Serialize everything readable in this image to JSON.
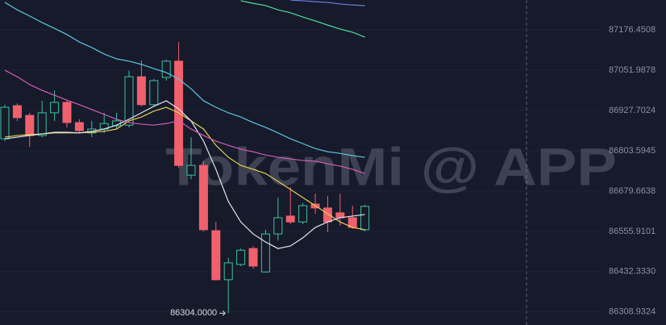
{
  "chart_data": {
    "type": "candlestick",
    "watermark": "TokenMi @ APP",
    "open": [
      86841,
      86943,
      86913,
      86851,
      86921,
      86953,
      86891,
      86859,
      86871,
      86881,
      86883,
      87032,
      86946,
      87030,
      87080,
      86729,
      86759,
      86558,
      86407,
      86454,
      86503,
      86431,
      86548,
      86603,
      86585,
      86640,
      86628,
      86613,
      86598,
      86561
    ],
    "high": [
      86946,
      86950,
      86921,
      86958,
      86990,
      86958,
      86901,
      86896,
      86921,
      86921,
      87050,
      87082,
      87025,
      87085,
      87139,
      86846,
      86772,
      86585,
      86474,
      86503,
      86511,
      86561,
      86660,
      86692,
      86643,
      86672,
      86665,
      86672,
      86635,
      86638
    ],
    "low": [
      86834,
      86896,
      86816,
      86846,
      86896,
      86876,
      86859,
      86846,
      86859,
      86871,
      86876,
      86941,
      86941,
      87020,
      86752,
      86717,
      86556,
      86404,
      86304,
      86449,
      86441,
      86429,
      86528,
      86578,
      86578,
      86610,
      86553,
      86573,
      86563,
      86556
    ],
    "close": [
      86938,
      86906,
      86851,
      86921,
      86953,
      86891,
      86866,
      86871,
      86888,
      86896,
      87032,
      86946,
      87020,
      87080,
      86759,
      86759,
      86561,
      86407,
      86459,
      86498,
      86449,
      86548,
      86598,
      86585,
      86635,
      86628,
      86585,
      86598,
      86568,
      86633
    ],
    "up_color": "#3cc29e",
    "down_color": "#f0616d",
    "lines": [
      {
        "color": "#e3cf57",
        "values": [
          86846,
          86851,
          86854,
          86856,
          86859,
          86859,
          86859,
          86861,
          86864,
          86871,
          86896,
          86908,
          86926,
          86938,
          86921,
          86896,
          86871,
          86821,
          86784,
          86759,
          86747,
          86734,
          86710,
          86685,
          86660,
          86635,
          86610,
          86585,
          86568,
          86561
        ]
      },
      {
        "color": "#e4e6ee",
        "values": [
          86841,
          86846,
          86851,
          86856,
          86861,
          86861,
          86859,
          86864,
          86871,
          86883,
          86901,
          86921,
          86941,
          86958,
          86933,
          86896,
          86834,
          86747,
          86648,
          86585,
          86548,
          86523,
          86503,
          86511,
          86536,
          86568,
          86585,
          86598,
          86603,
          86608
        ]
      },
      {
        "color": "#d55db9",
        "values": [
          87052,
          87032,
          87008,
          86990,
          86975,
          86960,
          86946,
          86931,
          86916,
          86901,
          86891,
          86886,
          86883,
          86888,
          86896,
          86871,
          86851,
          86834,
          86821,
          86809,
          86801,
          86791,
          86784,
          86779,
          86774,
          86772,
          86764,
          86757,
          86747,
          86734
        ]
      },
      {
        "color": "#5ec6df",
        "values": [
          87261,
          87238,
          87219,
          87199,
          87181,
          87162,
          87139,
          87122,
          87102,
          87087,
          87080,
          87070,
          87057,
          87045,
          87025,
          86995,
          86958,
          86938,
          86921,
          86908,
          86891,
          86876,
          86859,
          86841,
          86826,
          86811,
          86801,
          86796,
          86789,
          86784
        ]
      },
      {
        "color": "#4fdc9e",
        "values": [
          null,
          null,
          null,
          null,
          null,
          null,
          null,
          null,
          null,
          null,
          null,
          null,
          null,
          null,
          null,
          null,
          null,
          null,
          null,
          87266,
          87258,
          87251,
          87238,
          87229,
          87216,
          87204,
          87191,
          87179,
          87169,
          87154
        ]
      },
      {
        "color": "#6a7fe0",
        "values": [
          null,
          null,
          null,
          null,
          null,
          null,
          null,
          null,
          null,
          null,
          null,
          null,
          null,
          null,
          null,
          null,
          null,
          null,
          null,
          null,
          null,
          null,
          null,
          87268,
          87266,
          87263,
          87261,
          87256,
          87253,
          87251
        ]
      }
    ],
    "annotation": {
      "value": 86304,
      "label": "86304.0000"
    },
    "ylim": [
      86267.6,
      87268.3
    ],
    "yticks": [
      87176.4508,
      87051.9878,
      86927.7024,
      86803.5945,
      86679.6638,
      86555.9101,
      {
        "value": 86432.333,
        "label": "86432.3330"
      },
      86308.9324
    ],
    "grid": true
  }
}
